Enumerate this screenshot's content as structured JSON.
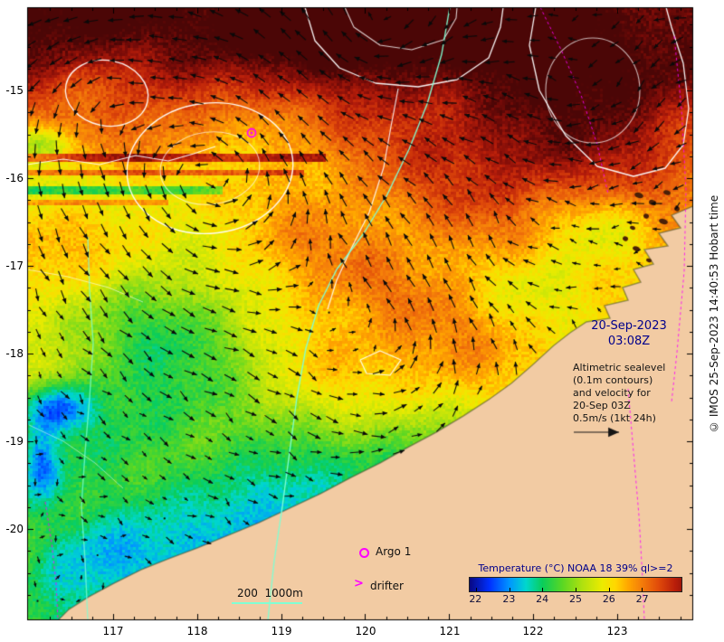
{
  "map": {
    "region": "North West Australia shelf sea surface temperature with altimetric currents",
    "lon_range": [
      116.0,
      123.9
    ],
    "lat_range": [
      -21.0,
      -14.1
    ],
    "overlays": [
      "sea surface temperature raster",
      "current velocity arrows",
      "altimetric sea level contours (white, 0.1m)",
      "isobaths 200m and 1000m (cyan)",
      "altimeter ground tracks (magenta dashed)",
      "Argo float position marker",
      "land mask"
    ]
  },
  "timestamp": {
    "date": "20-Sep-2023",
    "time": "03:08Z"
  },
  "annotation": {
    "lines": [
      "Altimetric sealevel",
      "(0.1m contours)",
      "and velocity for",
      "20-Sep 03Z",
      "0.5m/s (1kt 24h)"
    ]
  },
  "legend": {
    "argo_label": "Argo 1",
    "drifter_label": "drifter",
    "isobath_label": "200  1000m"
  },
  "colorbar": {
    "title": "Temperature (°C) NOAA 18 39% ql>=2",
    "ticks": [
      "22",
      "23",
      "24",
      "25",
      "26",
      "27"
    ]
  },
  "axes": {
    "x_ticks": [
      "117",
      "118",
      "119",
      "120",
      "121",
      "122",
      "123"
    ],
    "y_ticks": [
      "-15",
      "-16",
      "-17",
      "-18",
      "-19",
      "-20"
    ]
  },
  "copyright": "© IMOS 25-Sep-2023 14:40:53 Hobart time",
  "colors": {
    "land": "#f2cba3",
    "contour_white": "#ffffff",
    "isobath_cyan": "#7fffd4",
    "track_magenta": "#ff00ff",
    "arrow_black": "#0a0a0a",
    "text_navy": "#00008b"
  }
}
